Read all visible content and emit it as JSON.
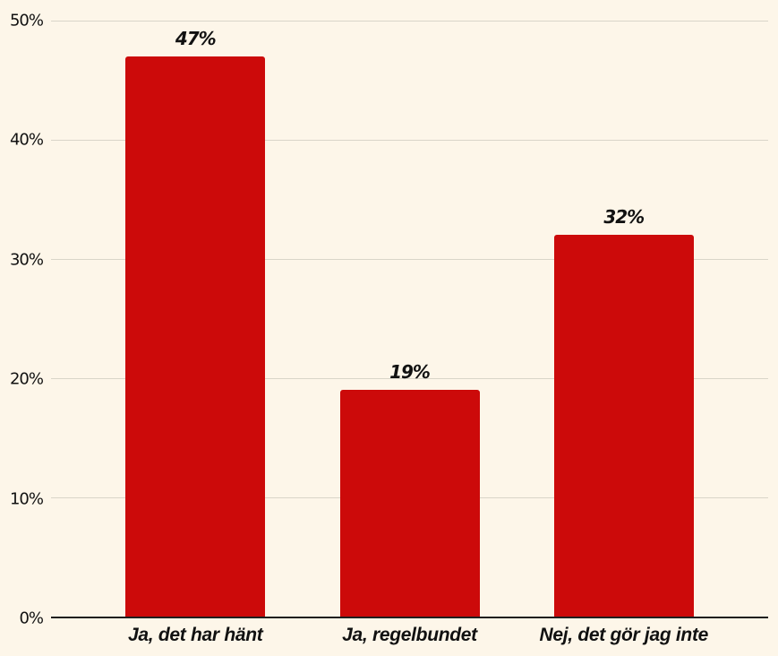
{
  "chart_data": {
    "type": "bar",
    "title": "",
    "xlabel": "",
    "ylabel": "",
    "categories": [
      "Ja, det har hänt",
      "Ja, regelbundet",
      "Nej, det gör jag inte"
    ],
    "values": [
      47,
      19,
      32
    ],
    "value_labels": [
      "47%",
      "19%",
      "32%"
    ],
    "ylim": [
      0,
      50
    ],
    "yticks": [
      0,
      10,
      20,
      30,
      40,
      50
    ],
    "ytick_labels": [
      "0%",
      "10%",
      "20%",
      "30%",
      "40%",
      "50%"
    ],
    "grid": "horizontal",
    "legend": "none",
    "colors": {
      "bar": "#CC0A0A",
      "background": "#FDF6E9",
      "gridline": "#D9D5C9",
      "axis_line": "#1F1F1F",
      "text": "#111111"
    }
  }
}
